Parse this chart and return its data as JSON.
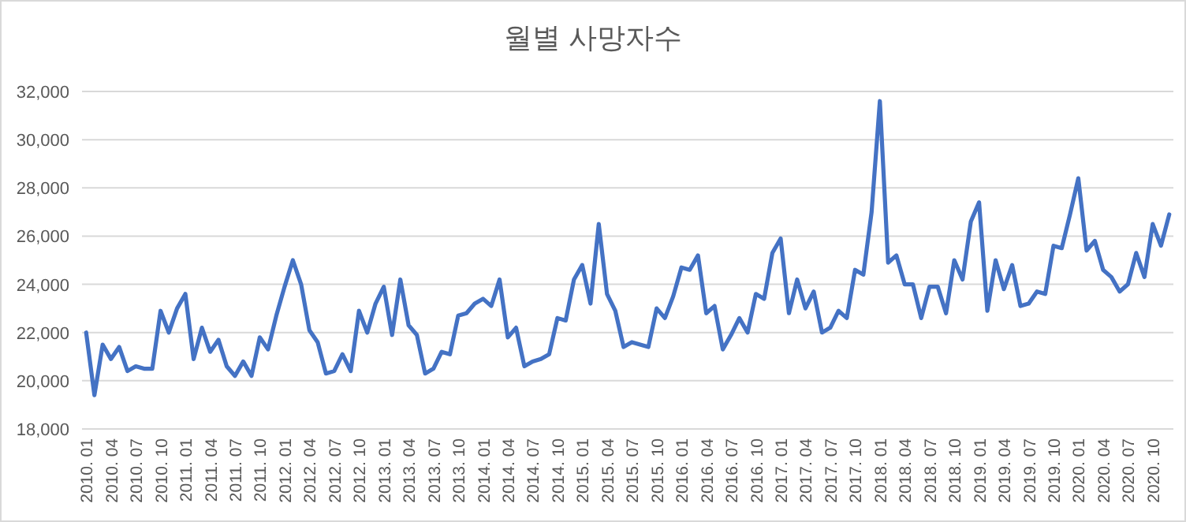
{
  "chart_data": {
    "type": "line",
    "title": "월별 사망자수",
    "categories": [
      "2010. 01",
      null,
      null,
      "2010. 04",
      null,
      null,
      "2010. 07",
      null,
      null,
      "2010. 10",
      null,
      null,
      "2011. 01",
      null,
      null,
      "2011. 04",
      null,
      null,
      "2011. 07",
      null,
      null,
      "2011. 10",
      null,
      null,
      "2012. 01",
      null,
      null,
      "2012. 04",
      null,
      null,
      "2012. 07",
      null,
      null,
      "2012. 10",
      null,
      null,
      "2013. 01",
      null,
      null,
      "2013. 04",
      null,
      null,
      "2013. 07",
      null,
      null,
      "2013. 10",
      null,
      null,
      "2014. 01",
      null,
      null,
      "2014. 04",
      null,
      null,
      "2014. 07",
      null,
      null,
      "2014. 10",
      null,
      null,
      "2015. 01",
      null,
      null,
      "2015. 04",
      null,
      null,
      "2015. 07",
      null,
      null,
      "2015. 10",
      null,
      null,
      "2016. 01",
      null,
      null,
      "2016. 04",
      null,
      null,
      "2016. 07",
      null,
      null,
      "2016. 10",
      null,
      null,
      "2017. 01",
      null,
      null,
      "2017. 04",
      null,
      null,
      "2017. 07",
      null,
      null,
      "2017. 10",
      null,
      null,
      "2018. 01",
      null,
      null,
      "2018. 04",
      null,
      null,
      "2018. 07",
      null,
      null,
      "2018. 10",
      null,
      null,
      "2019. 01",
      null,
      null,
      "2019. 04",
      null,
      null,
      "2019. 07",
      null,
      null,
      "2019. 10",
      null,
      null,
      "2020. 01",
      null,
      null,
      "2020. 04",
      null,
      null,
      "2020. 07",
      null,
      null,
      "2020. 10",
      null,
      null
    ],
    "series": [
      {
        "color": "#4472c4",
        "values": [
          22000,
          19400,
          21500,
          20900,
          21400,
          20400,
          20600,
          20500,
          20500,
          22900,
          22000,
          23000,
          23600,
          20900,
          22200,
          21200,
          21700,
          20600,
          20200,
          20800,
          20200,
          21800,
          21300,
          22700,
          23900,
          25000,
          24000,
          22100,
          21600,
          20300,
          20400,
          21100,
          20400,
          22900,
          22000,
          23200,
          23900,
          21900,
          24200,
          22300,
          21900,
          20300,
          20500,
          21200,
          21100,
          22700,
          22800,
          23200,
          23400,
          23100,
          24200,
          21800,
          22200,
          20600,
          20800,
          20900,
          21100,
          22600,
          22500,
          24200,
          24800,
          23200,
          26500,
          23600,
          22900,
          21400,
          21600,
          21500,
          21400,
          23000,
          22600,
          23500,
          24700,
          24600,
          25200,
          22800,
          23100,
          21300,
          21900,
          22600,
          22000,
          23600,
          23400,
          25300,
          25900,
          22800,
          24200,
          23000,
          23700,
          22000,
          22200,
          22900,
          22600,
          24600,
          24400,
          27000,
          31600,
          24900,
          25200,
          24000,
          24000,
          22600,
          23900,
          23900,
          22800,
          25000,
          24200,
          26600,
          27400,
          22900,
          25000,
          23800,
          24800,
          23100,
          23200,
          23700,
          23600,
          25600,
          25500,
          26900,
          28400,
          25400,
          25800,
          24600,
          24300,
          23700,
          24000,
          25300,
          24300,
          26500,
          25600,
          26900
        ]
      }
    ],
    "ylim": [
      18000,
      32000
    ],
    "yticks": [
      {
        "value": 18000,
        "label": "18,000"
      },
      {
        "value": 20000,
        "label": "20,000"
      },
      {
        "value": 22000,
        "label": "22,000"
      },
      {
        "value": 24000,
        "label": "24,000"
      },
      {
        "value": 26000,
        "label": "26,000"
      },
      {
        "value": 28000,
        "label": "28,000"
      },
      {
        "value": 30000,
        "label": "30,000"
      },
      {
        "value": 32000,
        "label": "32,000"
      }
    ],
    "grid": "y",
    "marker": "none",
    "line_style": "solid"
  }
}
